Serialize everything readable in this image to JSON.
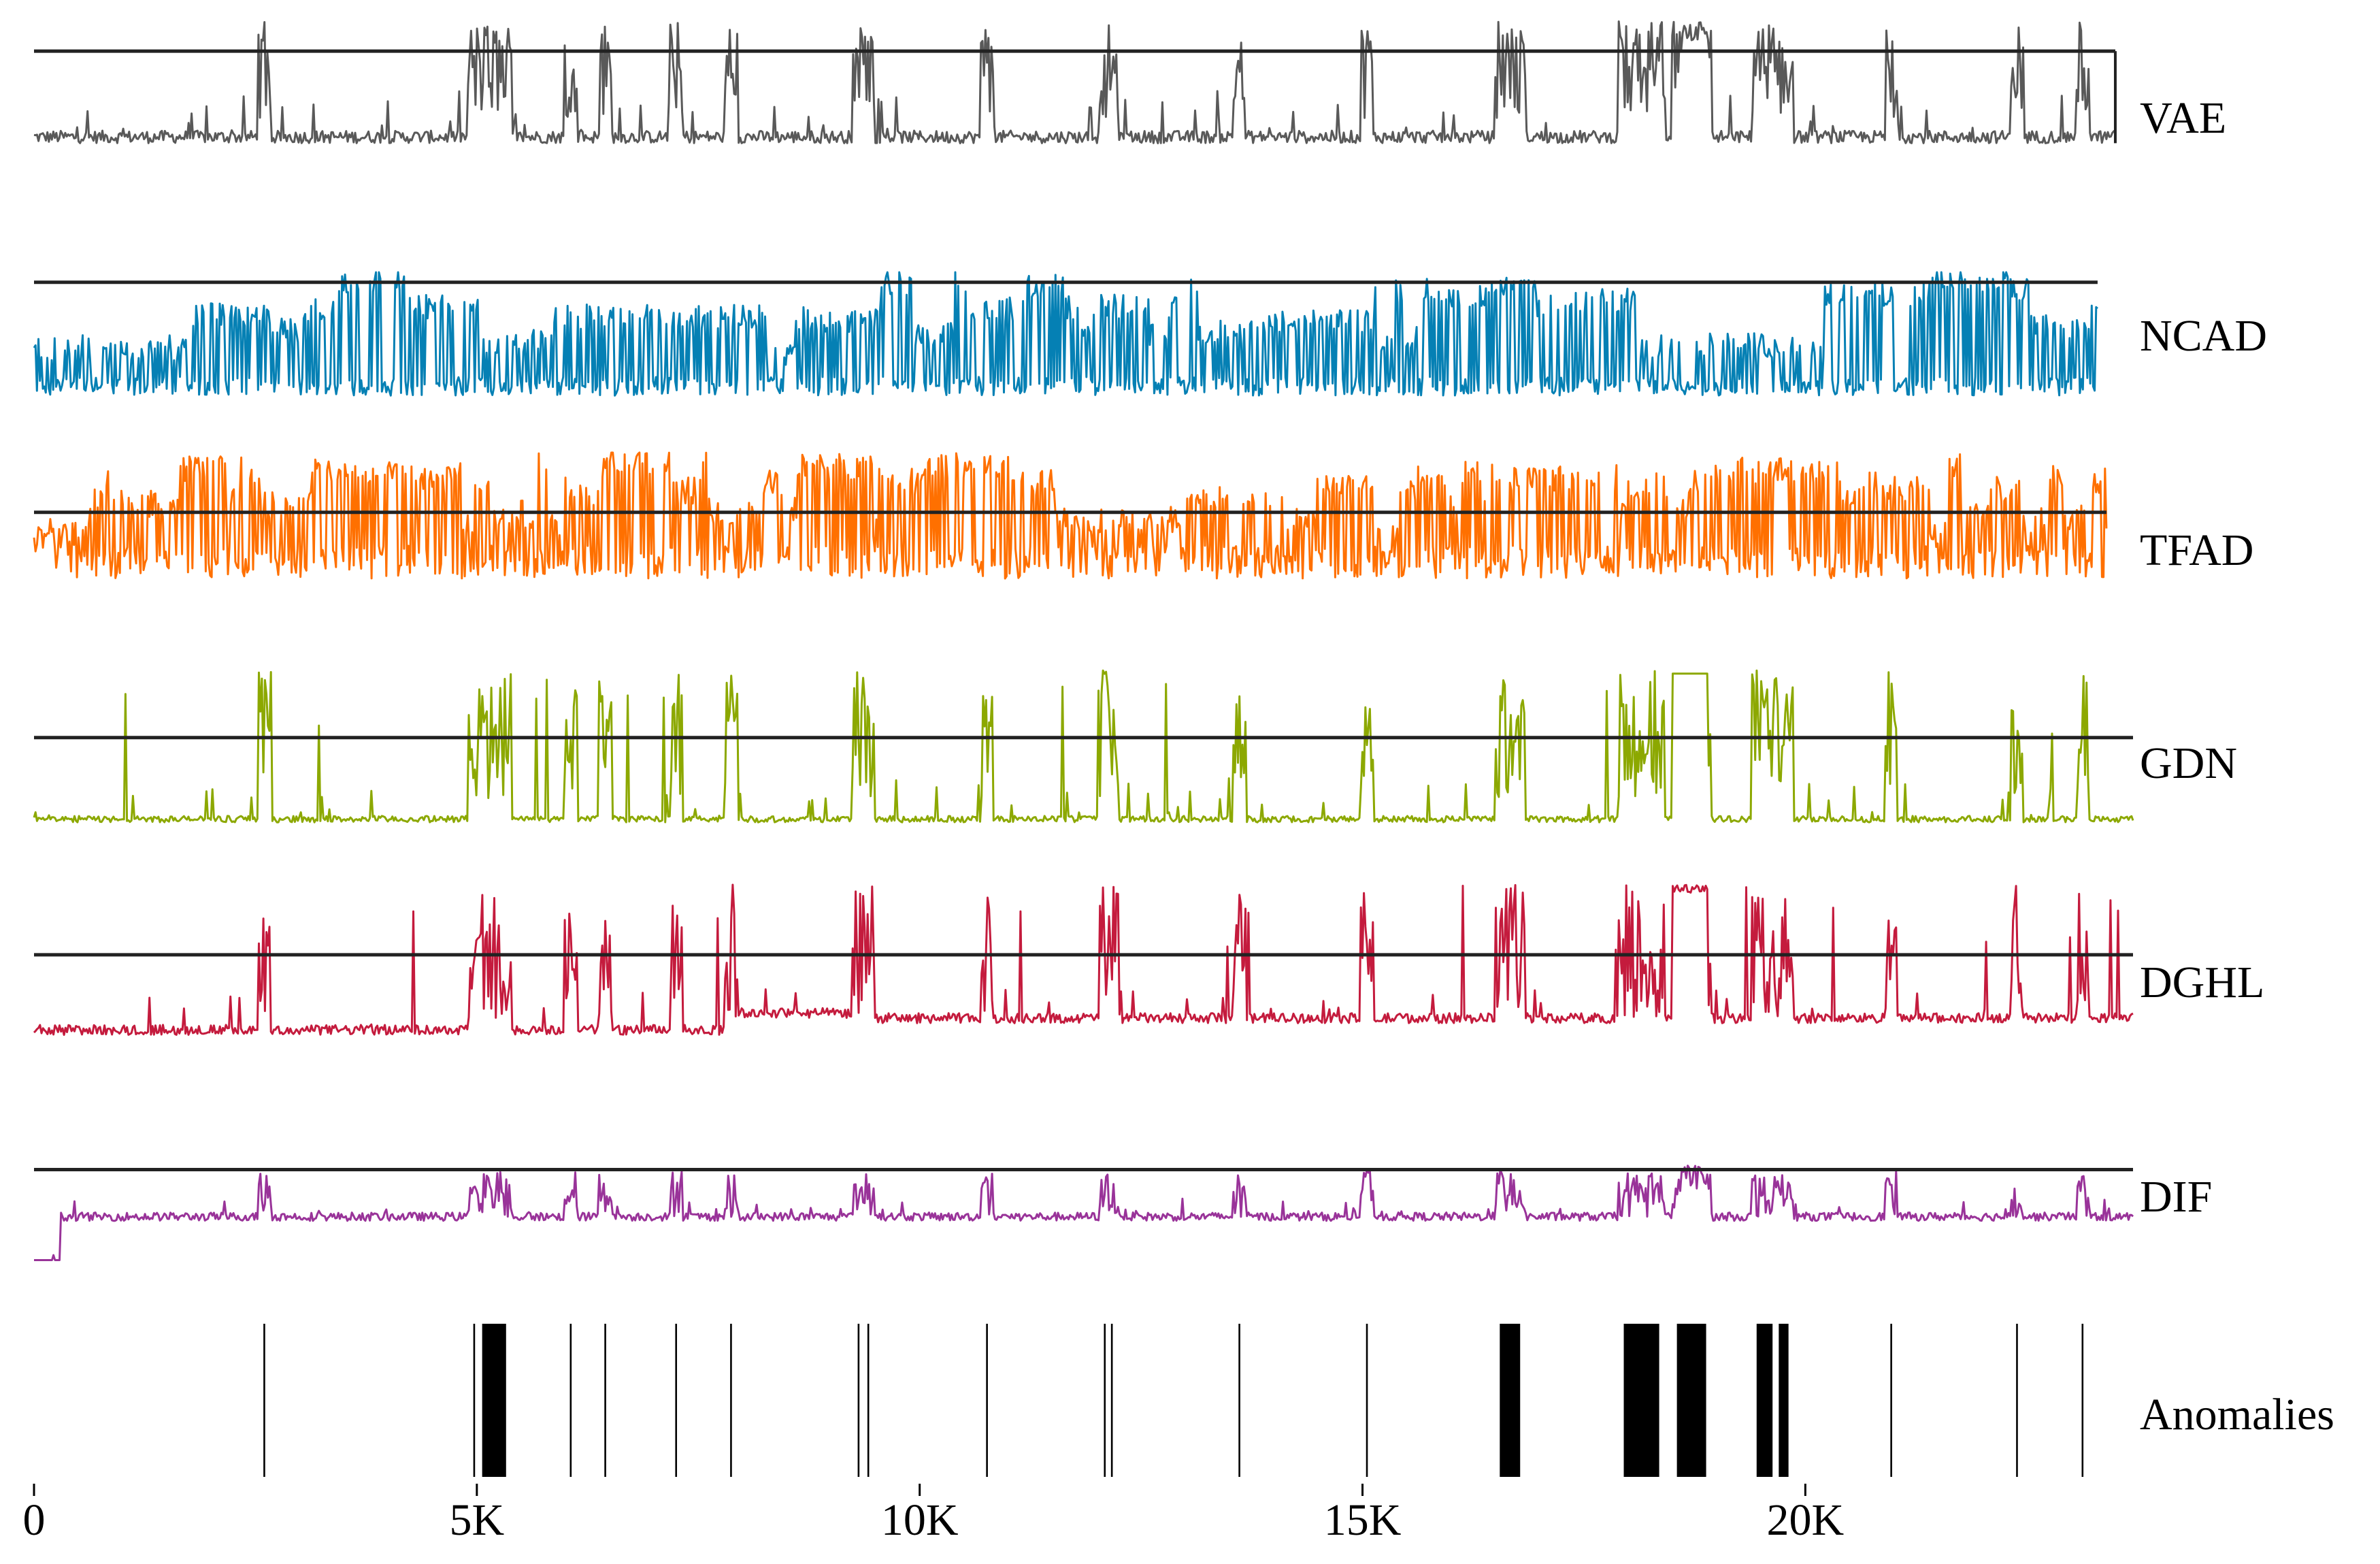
{
  "chart_data": {
    "type": "line",
    "x_range": [
      0,
      23700
    ],
    "x_ticks": [
      {
        "value": 0,
        "label": "0"
      },
      {
        "value": 5000,
        "label": "5K"
      },
      {
        "value": 10000,
        "label": "10K"
      },
      {
        "value": 15000,
        "label": "15K"
      },
      {
        "value": 20000,
        "label": "20K"
      }
    ],
    "grid": false,
    "legend": "none",
    "series": [
      {
        "name": "VAE",
        "color": "#595959",
        "threshold": 0.78,
        "x_end": 23500
      },
      {
        "name": "NCAD",
        "color": "#0580b4",
        "threshold": 0.92,
        "x_end": 23300
      },
      {
        "name": "TFAD",
        "color": "#ff7000",
        "threshold": 0.55,
        "x_end": 23400
      },
      {
        "name": "GDN",
        "color": "#8ca800",
        "threshold": 0.58,
        "x_end": 23700
      },
      {
        "name": "DGHL",
        "color": "#c41b3d",
        "threshold": 0.58,
        "x_end": 23700
      },
      {
        "name": "DIF",
        "color": "#993399",
        "threshold": 0.78,
        "x_end": 23700
      }
    ],
    "anomalies": {
      "label": "Anomalies",
      "color": "#000000",
      "intervals": [
        [
          2590,
          2610
        ],
        [
          4960,
          4980
        ],
        [
          5060,
          5330
        ],
        [
          6050,
          6070
        ],
        [
          6440,
          6460
        ],
        [
          7240,
          7260
        ],
        [
          7860,
          7880
        ],
        [
          9300,
          9320
        ],
        [
          9410,
          9430
        ],
        [
          10750,
          10770
        ],
        [
          12080,
          12100
        ],
        [
          12160,
          12180
        ],
        [
          13600,
          13620
        ],
        [
          15040,
          15060
        ],
        [
          16550,
          16780
        ],
        [
          17950,
          18350
        ],
        [
          18550,
          18880
        ],
        [
          19450,
          19630
        ],
        [
          19700,
          19810
        ],
        [
          20960,
          20980
        ],
        [
          22380,
          22400
        ],
        [
          23120,
          23140
        ]
      ]
    }
  }
}
